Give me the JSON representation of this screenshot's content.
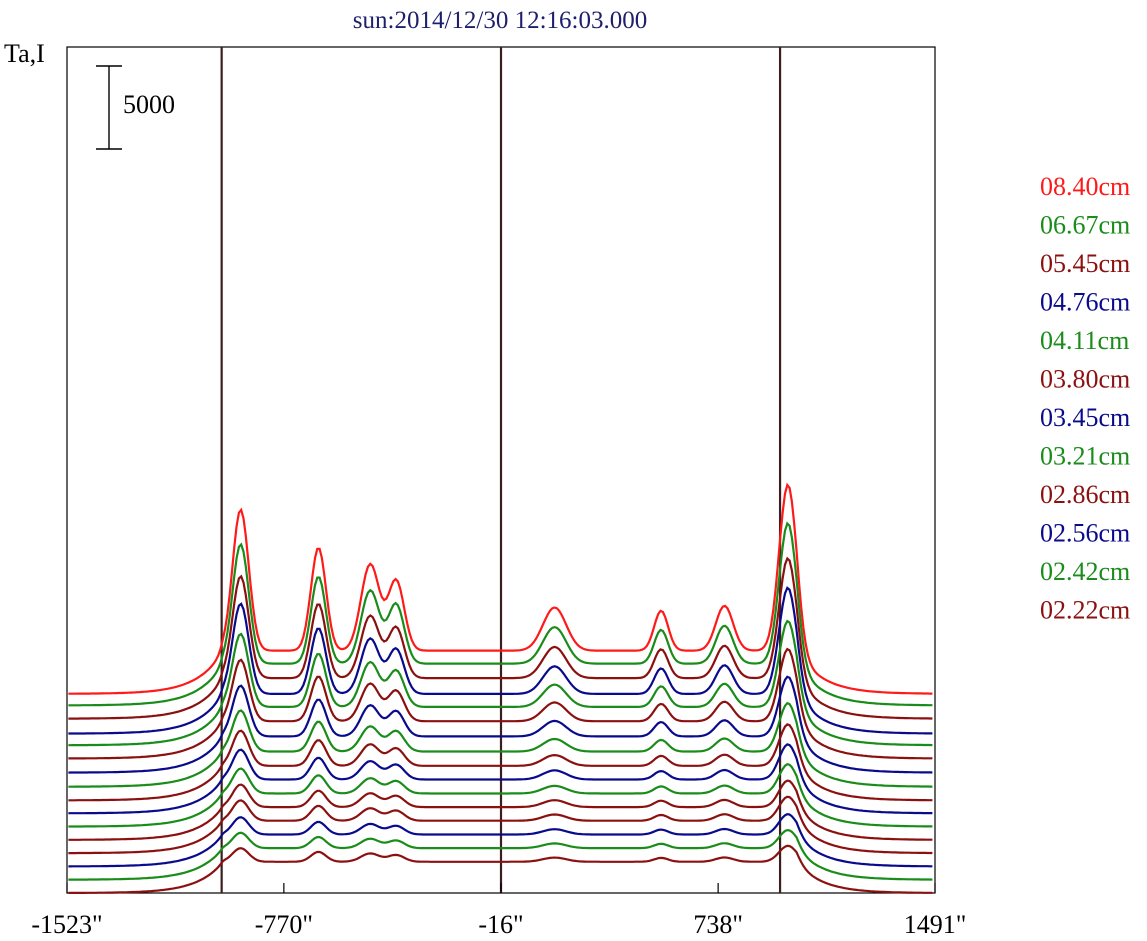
{
  "chart_data": {
    "type": "line",
    "title": "sun:2014/12/30 12:16:03.000",
    "ylabel": "Ta,I",
    "xlabel": "",
    "x_ticks": [
      "-1523\"",
      "-770\"",
      "-16\"",
      "738\"",
      "1491\""
    ],
    "x_tick_values": [
      -1523,
      -770,
      -16,
      738,
      1491
    ],
    "xlim": [
      -1523,
      1491
    ],
    "scale_bar": {
      "label": "5000",
      "value": 5000
    },
    "vertical_lines": [
      -986,
      -16,
      953
    ],
    "legend_placement": "right",
    "colors": {
      "red": "#ff1a1a",
      "green": "#1a8c1a",
      "darkred": "#8b1010",
      "blue": "#0a0a8c",
      "title": "#1e1e6e",
      "vline": "#3c1e1e",
      "axis": "#000000"
    },
    "series": [
      {
        "name": "08.40cm",
        "color": "#ff1a1a",
        "baseline": 14600,
        "scale": 1.0
      },
      {
        "name": "06.67cm",
        "color": "#1a8c1a",
        "baseline": 13900,
        "scale": 0.92
      },
      {
        "name": "05.45cm",
        "color": "#8b1010",
        "baseline": 13100,
        "scale": 0.85
      },
      {
        "name": "04.76cm",
        "color": "#0a0a8c",
        "baseline": 12200,
        "scale": 0.8
      },
      {
        "name": "04.11cm",
        "color": "#1a8c1a",
        "baseline": 11500,
        "scale": 0.72
      },
      {
        "name": "03.80cm",
        "color": "#8b1010",
        "baseline": 10700,
        "scale": 0.66
      },
      {
        "name": "03.45cm",
        "color": "#0a0a8c",
        "baseline": 9850,
        "scale": 0.6
      },
      {
        "name": "03.21cm",
        "color": "#1a8c1a",
        "baseline": 9000,
        "scale": 0.54
      },
      {
        "name": "02.86cm",
        "color": "#8b1010",
        "baseline": 8180,
        "scale": 0.5
      },
      {
        "name": "02.56cm",
        "color": "#0a0a8c",
        "baseline": 7400,
        "scale": 0.46
      },
      {
        "name": "02.42cm",
        "color": "#1a8c1a",
        "baseline": 6600,
        "scale": 0.42
      },
      {
        "name": "02.22cm",
        "color": "#8b1010",
        "baseline": 5800,
        "scale": 0.4
      },
      {
        "name": "",
        "color": "#8b1010",
        "baseline": 5000,
        "scale": 0.38
      },
      {
        "name": "",
        "color": "#0a0a8c",
        "baseline": 4200,
        "scale": 0.35
      },
      {
        "name": "",
        "color": "#1a8c1a",
        "baseline": 3400,
        "scale": 0.33
      },
      {
        "name": "",
        "color": "#8b1010",
        "baseline": 2600,
        "scale": 0.31
      }
    ]
  }
}
